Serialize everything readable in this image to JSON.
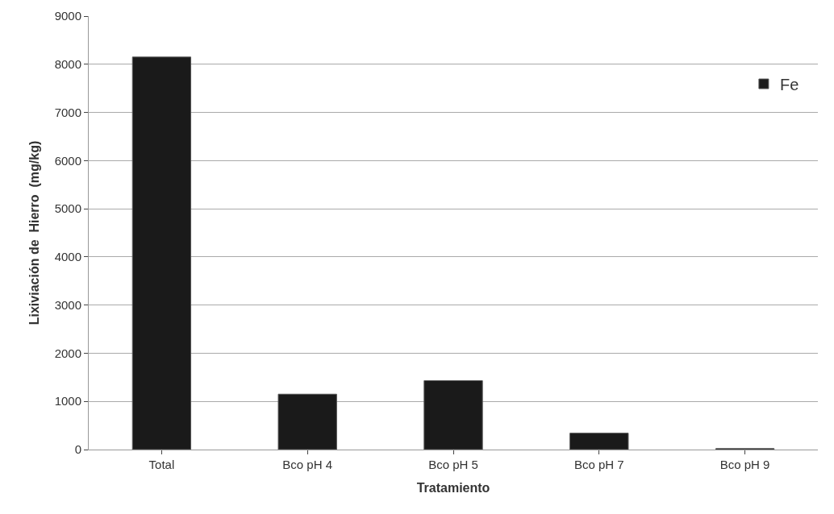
{
  "chart_data": {
    "type": "bar",
    "xlabel": "Tratamiento",
    "ylabel": "Lixiviación de  Hierro  (mg/kg)",
    "categories": [
      "Total",
      "Bco pH 4",
      "Bco pH 5",
      "Bco pH 7",
      "Bco pH 9"
    ],
    "series": [
      {
        "name": "Fe",
        "color": "#1a1a1a",
        "values": [
          8150,
          1150,
          1430,
          340,
          20
        ]
      }
    ],
    "ylim": [
      0,
      9000
    ],
    "yticks": [
      0,
      1000,
      2000,
      3000,
      4000,
      5000,
      6000,
      7000,
      8000,
      9000
    ],
    "grid": "y",
    "legend": "top right"
  }
}
